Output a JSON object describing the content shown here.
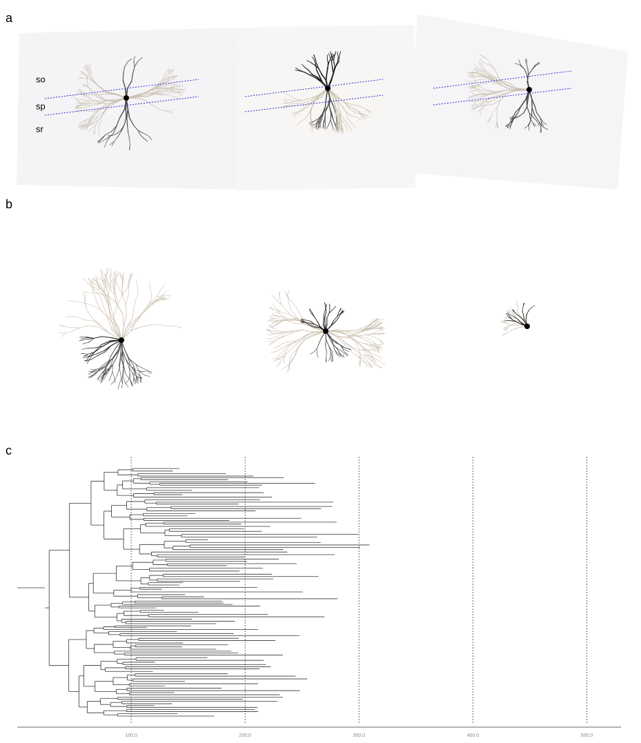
{
  "panel_labels": [
    "a",
    "b",
    "c"
  ],
  "layer_labels": [
    "so",
    "sp",
    "sr"
  ],
  "chart_data": {
    "type": "dendrogram",
    "xlim": [
      0,
      530
    ],
    "xticks": [
      {
        "value": 100,
        "label": "100.0"
      },
      {
        "value": 200,
        "label": "200.0"
      },
      {
        "value": 300,
        "label": "300.0"
      },
      {
        "value": 400,
        "label": "400.0"
      },
      {
        "value": 500,
        "label": "500.0"
      }
    ],
    "grid": true
  }
}
